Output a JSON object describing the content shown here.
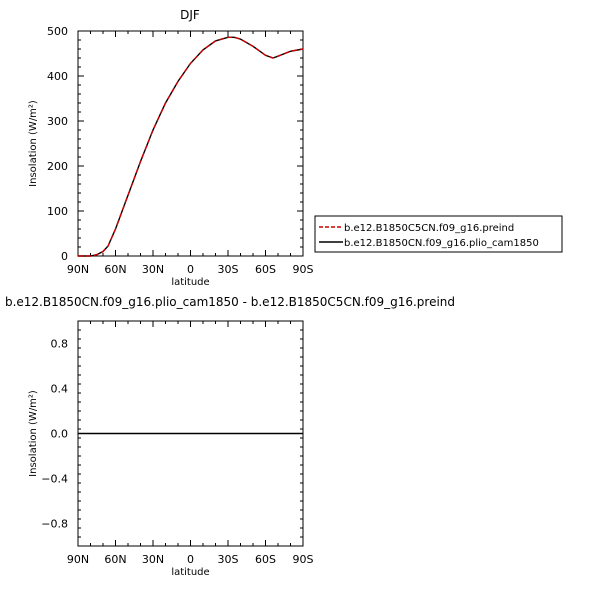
{
  "chart_data": [
    {
      "type": "line",
      "title": "DJF",
      "xlabel": "latitude",
      "ylabel": "Insolation (W/m²)",
      "xlim": [
        -90,
        90
      ],
      "ylim": [
        0,
        500
      ],
      "x_ticks": [
        {
          "value": -90,
          "label": "90N"
        },
        {
          "value": -60,
          "label": "60N"
        },
        {
          "value": -30,
          "label": "30N"
        },
        {
          "value": 0,
          "label": "0"
        },
        {
          "value": 30,
          "label": "30S"
        },
        {
          "value": 60,
          "label": "60S"
        },
        {
          "value": 90,
          "label": "90S"
        }
      ],
      "y_ticks": [
        {
          "value": 0,
          "label": "0"
        },
        {
          "value": 100,
          "label": "100"
        },
        {
          "value": 200,
          "label": "200"
        },
        {
          "value": 300,
          "label": "300"
        },
        {
          "value": 400,
          "label": "400"
        },
        {
          "value": 500,
          "label": "500"
        }
      ],
      "x": [
        -90,
        -80,
        -75,
        -70,
        -66,
        -60,
        -50,
        -40,
        -30,
        -20,
        -10,
        0,
        10,
        20,
        30,
        35,
        40,
        50,
        60,
        66,
        70,
        80,
        90
      ],
      "series": [
        {
          "name": "b.e12.B1850C5CN.f09_g16.preind",
          "color": "#cc0000",
          "dash": "dashed",
          "values": [
            0,
            0,
            3,
            10,
            22,
            60,
            135,
            210,
            280,
            340,
            388,
            428,
            458,
            478,
            486,
            486,
            482,
            466,
            446,
            440,
            444,
            455,
            460
          ]
        },
        {
          "name": "b.e12.B1850CN.f09_g16.plio_cam1850",
          "color": "#000000",
          "dash": "solid",
          "values": [
            0,
            0,
            3,
            10,
            22,
            60,
            135,
            210,
            280,
            340,
            388,
            428,
            458,
            478,
            486,
            486,
            482,
            466,
            446,
            440,
            444,
            455,
            460
          ]
        }
      ]
    },
    {
      "type": "line",
      "title": "b.e12.B1850CN.f09_g16.plio_cam1850 - b.e12.B1850C5CN.f09_g16.preind",
      "xlabel": "latitude",
      "ylabel": "Insolation (W/m²)",
      "xlim": [
        -90,
        90
      ],
      "ylim": [
        -1,
        1
      ],
      "x_ticks": [
        {
          "value": -90,
          "label": "90N"
        },
        {
          "value": -60,
          "label": "60N"
        },
        {
          "value": -30,
          "label": "30N"
        },
        {
          "value": 0,
          "label": "0"
        },
        {
          "value": 30,
          "label": "30S"
        },
        {
          "value": 60,
          "label": "60S"
        },
        {
          "value": 90,
          "label": "90S"
        }
      ],
      "y_ticks": [
        {
          "value": 0.8,
          "label": "0.8"
        },
        {
          "value": 0.4,
          "label": "0.4"
        },
        {
          "value": 0,
          "label": "0.0"
        },
        {
          "value": -0.4,
          "label": "−0.4"
        },
        {
          "value": -0.8,
          "label": "−0.8"
        }
      ],
      "x": [
        -90,
        90
      ],
      "series": [
        {
          "color": "#000000",
          "dash": "solid",
          "values": [
            0,
            0
          ]
        }
      ]
    }
  ]
}
